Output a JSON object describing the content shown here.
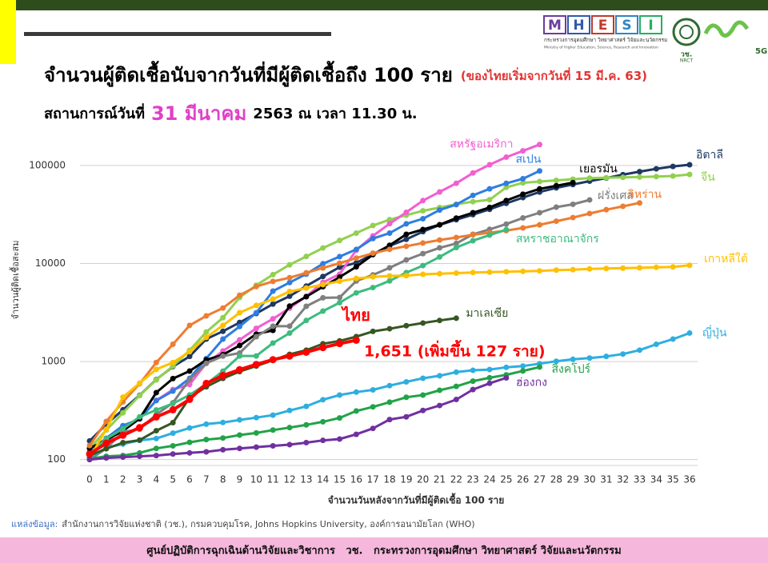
{
  "header": {
    "logo_letters": [
      "M",
      "H",
      "E",
      "S",
      "I"
    ],
    "ministry_th": "กระทรวงการอุดมศึกษา วิทยาศาสตร์ วิจัยและนวัตกรรม",
    "ministry_en": "Ministry of Higher Education, Science, Research and Innovation",
    "nrct_th": "วช.",
    "nrct_en": "NRCT",
    "logo_5g": "5G"
  },
  "chart_data": {
    "type": "line",
    "title": "จำนวนผู้ติดเชื้อนับจากวันที่มีผู้ติดเชื้อถึง 100 ราย",
    "subtitle": "(ของไทยเริ่มจากวันที่ 15 มี.ค. 63)",
    "date_prefix": "สถานการณ์วันที่",
    "date_highlight": "31 มีนาคม",
    "date_suffix": "2563 ณ เวลา 11.30 น.",
    "x_label": "จำนวนวันหลังจากวันที่มีผู้ติดเชื้อ 100 ราย",
    "y_label": "จำนวนผู้ติดเชื้อสะสม",
    "annotation": "1,651 (เพิ่มขึ้น 127 ราย)",
    "log_y": true,
    "grid": true,
    "xlim": [
      0,
      36
    ],
    "ylim": [
      75,
      200000
    ],
    "xticks": [
      0,
      1,
      2,
      3,
      4,
      5,
      6,
      7,
      8,
      9,
      10,
      11,
      12,
      13,
      14,
      15,
      16,
      17,
      18,
      19,
      20,
      21,
      22,
      23,
      24,
      25,
      26,
      27,
      28,
      29,
      30,
      31,
      32,
      33,
      34,
      35,
      36
    ],
    "yticks": [
      100,
      1000,
      10000,
      100000
    ],
    "x": [
      0,
      1,
      2,
      3,
      4,
      5,
      6,
      7,
      8,
      9,
      10,
      11,
      12,
      13,
      14,
      15,
      16,
      17,
      18,
      19,
      20,
      21,
      22,
      23,
      24,
      25,
      26,
      27,
      28,
      29,
      30,
      31,
      32,
      33,
      34,
      35,
      36
    ],
    "series": [
      {
        "name": "อิตาลี",
        "color": "#1f3864",
        "values": [
          155,
          229,
          322,
          453,
          655,
          888,
          1128,
          1694,
          2036,
          2502,
          3089,
          3858,
          4636,
          5883,
          7375,
          9172,
          10149,
          12462,
          15113,
          17660,
          21157,
          24747,
          27980,
          31506,
          35713,
          41035,
          47021,
          53578,
          59138,
          63927,
          69176,
          74386,
          80589,
          86498,
          92472,
          97689,
          101739
        ]
      },
      {
        "name": "จีน",
        "color": "#92d050",
        "values": [
          130,
          200,
          300,
          450,
          650,
          900,
          1300,
          2000,
          2800,
          4500,
          6000,
          7700,
          9700,
          11800,
          14400,
          17200,
          20400,
          24400,
          28000,
          31100,
          34500,
          37200,
          40200,
          42700,
          44700,
          59800,
          66500,
          68500,
          70500,
          72400,
          74200,
          75000,
          75600,
          76200,
          77000,
          78000,
          81000
        ]
      },
      {
        "name": "สหรัฐอเมริกา",
        "color": "#f25fd0",
        "values": [
          118,
          149,
          217,
          262,
          402,
          518,
          583,
          959,
          1281,
          1663,
          2179,
          2727,
          3499,
          4632,
          6421,
          7786,
          13680,
          19101,
          25493,
          33276,
          43847,
          53740,
          65778,
          83836,
          101657,
          121478,
          140886,
          163539,
          null,
          null,
          null,
          null,
          null,
          null,
          null,
          null,
          null
        ]
      },
      {
        "name": "สเปน",
        "color": "#2f7de1",
        "values": [
          120,
          165,
          222,
          259,
          400,
          500,
          673,
          1073,
          1695,
          2277,
          3146,
          5232,
          6391,
          7798,
          9942,
          11748,
          13910,
          17963,
          20410,
          25374,
          28603,
          35136,
          39885,
          49515,
          57786,
          65719,
          73235,
          87956,
          null,
          null,
          null,
          null,
          null,
          null,
          null,
          null,
          null
        ]
      },
      {
        "name": "เยอรมัน",
        "color": "#000000",
        "values": [
          130,
          159,
          196,
          262,
          482,
          670,
          799,
          1040,
          1176,
          1457,
          1908,
          2078,
          3675,
          4585,
          5795,
          7272,
          9257,
          12327,
          15320,
          19848,
          22213,
          24873,
          29056,
          32986,
          37323,
          43938,
          50871,
          57695,
          62095,
          66885,
          null,
          null,
          null,
          null,
          null,
          null,
          null
        ]
      },
      {
        "name": "ฝรั่งเศส",
        "color": "#7f7f7f",
        "values": [
          100,
          130,
          191,
          204,
          288,
          380,
          656,
          959,
          1136,
          1219,
          1794,
          2293,
          2293,
          3661,
          4469,
          4499,
          6633,
          7652,
          9043,
          10871,
          12612,
          14459,
          16018,
          19856,
          22304,
          25233,
          29155,
          32964,
          37575,
          40174,
          44550,
          null,
          null,
          null,
          null,
          null,
          null
        ]
      },
      {
        "name": "อิหร่าน",
        "color": "#ed7d31",
        "values": [
          139,
          245,
          388,
          593,
          978,
          1501,
          2336,
          2922,
          3513,
          4747,
          5823,
          6566,
          7161,
          8042,
          9000,
          10075,
          11364,
          12729,
          13938,
          14991,
          16169,
          17361,
          18407,
          19644,
          20610,
          21638,
          23049,
          24811,
          27017,
          29406,
          32332,
          35408,
          38309,
          41495,
          null,
          null,
          null
        ]
      },
      {
        "name": "สหราชอาณาจักร",
        "color": "#3dbb7e",
        "values": [
          115,
          163,
          206,
          273,
          321,
          373,
          456,
          590,
          798,
          1140,
          1140,
          1543,
          1950,
          2626,
          3269,
          3983,
          5018,
          5683,
          6650,
          8077,
          9529,
          11658,
          14543,
          17089,
          19522,
          22141,
          null,
          null,
          null,
          null,
          null,
          null,
          null,
          null,
          null,
          null,
          null
        ]
      },
      {
        "name": "เกาหลีใต้",
        "color": "#ffc000",
        "values": [
          104,
          204,
          433,
          602,
          833,
          977,
          1261,
          1766,
          2337,
          3150,
          3736,
          4335,
          5186,
          5621,
          6088,
          6593,
          7041,
          7313,
          7478,
          7513,
          7755,
          7869,
          7979,
          8086,
          8162,
          8236,
          8320,
          8413,
          8565,
          8652,
          8799,
          8897,
          8961,
          9037,
          9137,
          9241,
          9583
        ]
      },
      {
        "name": "ญี่ปุ่น",
        "color": "#2eaee0",
        "values": [
          105,
          132,
          144,
          157,
          164,
          186,
          210,
          230,
          239,
          254,
          268,
          284,
          317,
          349,
          408,
          455,
          488,
          514,
          568,
          620,
          675,
          716,
          780,
          814,
          829,
          873,
          900,
          950,
          1007,
          1054,
          1086,
          1128,
          1193,
          1307,
          1499,
          1693,
          1953
        ]
      },
      {
        "name": "สิงคโปร์",
        "color": "#21a348",
        "values": [
          102,
          108,
          110,
          117,
          130,
          138,
          150,
          160,
          166,
          178,
          187,
          200,
          212,
          226,
          243,
          266,
          313,
          345,
          385,
          432,
          455,
          509,
          558,
          631,
          683,
          732,
          802,
          879,
          null,
          null,
          null,
          null,
          null,
          null,
          null,
          null,
          null
        ]
      },
      {
        "name": "ฮ่องกง",
        "color": "#7030a0",
        "values": [
          100,
          104,
          106,
          108,
          110,
          114,
          117,
          120,
          126,
          130,
          134,
          138,
          142,
          149,
          157,
          162,
          181,
          208,
          256,
          273,
          317,
          356,
          410,
          518,
          600,
          682,
          null,
          null,
          null,
          null,
          null,
          null,
          null,
          null,
          null,
          null,
          null
        ]
      },
      {
        "name": "มาเลเซีย",
        "color": "#375623",
        "values": [
          110,
          129,
          149,
          158,
          197,
          238,
          428,
          553,
          673,
          790,
          900,
          1030,
          1183,
          1306,
          1518,
          1624,
          1796,
          2031,
          2161,
          2320,
          2470,
          2626,
          2766,
          null,
          null,
          null,
          null,
          null,
          null,
          null,
          null,
          null,
          null,
          null,
          null,
          null,
          null
        ]
      },
      {
        "name": "ไทย",
        "color": "#ff0000",
        "values": [
          114,
          147,
          177,
          212,
          272,
          322,
          411,
          599,
          721,
          827,
          934,
          1045,
          1136,
          1245,
          1388,
          1524,
          1651,
          null,
          null,
          null,
          null,
          null,
          null,
          null,
          null,
          null,
          null,
          null,
          null,
          null,
          null,
          null,
          null,
          null,
          null,
          null,
          null
        ]
      }
    ]
  },
  "source": {
    "label": "แหล่งข้อมูล:",
    "text": "สำนักงานการวิจัยแห่งชาติ (วช.), กรมควบคุมโรค, Johns Hopkins University, องค์การอนามัยโลก (WHO)"
  },
  "footer": "ศูนย์ปฏิบัติการฉุกเฉินด้านวิจัยและวิชาการ   วช.   กระทรวงการอุดมศึกษา วิทยาศาสตร์ วิจัยและนวัตกรรม"
}
